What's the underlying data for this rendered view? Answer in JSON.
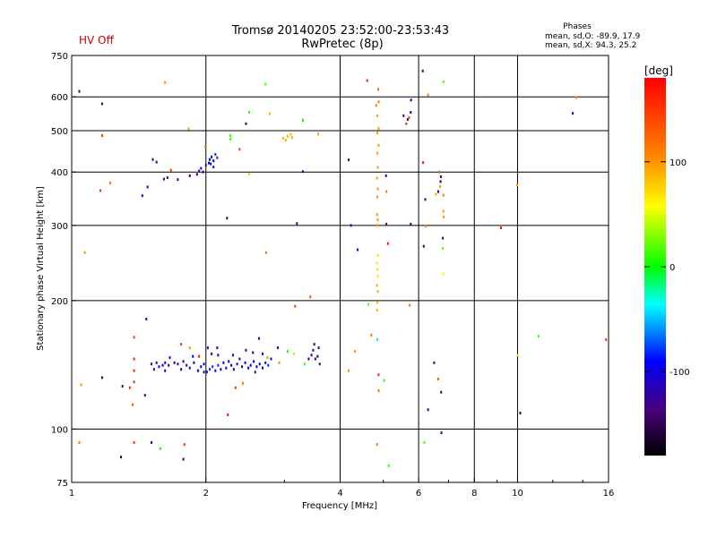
{
  "header": {
    "title_line1": "Tromsø 20140205 23:52:00-23:53:43",
    "title_line2": "RwPretec (8p)",
    "hv_status": "HV Off",
    "hv_color": "#cc0000"
  },
  "stats": {
    "heading": "Phases",
    "line1": "mean, sd,O: -89.9, 17.9",
    "line2": "mean, sd,X:  94.3, 25.2"
  },
  "colorbar": {
    "unit": "[deg]",
    "ticks": [
      {
        "label": "100",
        "value": 100
      },
      {
        "label": "0",
        "value": 0
      },
      {
        "label": "-100",
        "value": -100
      }
    ],
    "range": [
      -180,
      180
    ]
  },
  "chart_data": {
    "type": "scatter",
    "xlabel": "Frequency [MHz]",
    "ylabel": "Stationary phase Virtual Height [km]",
    "xscale": "log",
    "yscale": "log",
    "xlim": [
      1,
      16
    ],
    "ylim": [
      75,
      750
    ],
    "xticks": [
      {
        "label": "1",
        "value": 1
      },
      {
        "label": "2",
        "value": 2
      },
      {
        "label": "4",
        "value": 4
      },
      {
        "label": "6",
        "value": 6
      },
      {
        "label": "8",
        "value": 8
      },
      {
        "label": "10",
        "value": 10
      },
      {
        "label": "16",
        "value": 16
      }
    ],
    "yticks": [
      {
        "label": "75",
        "value": 75
      },
      {
        "label": "100",
        "value": 100
      },
      {
        "label": "200",
        "value": 200
      },
      {
        "label": "300",
        "value": 300
      },
      {
        "label": "400",
        "value": 400
      },
      {
        "label": "500",
        "value": 500
      },
      {
        "label": "600",
        "value": 600
      },
      {
        "label": "750",
        "value": 750
      }
    ],
    "vgrid": [
      2,
      4,
      6,
      8,
      10
    ],
    "hgrid": [
      100,
      200,
      300,
      400,
      500,
      600
    ],
    "points": [
      {
        "x": 1.04,
        "y": 618,
        "p": -140
      },
      {
        "x": 1.17,
        "y": 578,
        "p": -145
      },
      {
        "x": 1.17,
        "y": 487,
        "p": 150
      },
      {
        "x": 1.16,
        "y": 362,
        "p": 150
      },
      {
        "x": 1.22,
        "y": 377,
        "p": 120
      },
      {
        "x": 1.07,
        "y": 259,
        "p": 100
      },
      {
        "x": 1.62,
        "y": 648,
        "p": 100
      },
      {
        "x": 2.72,
        "y": 642,
        "p": 20
      },
      {
        "x": 1.83,
        "y": 505,
        "p": 95
      },
      {
        "x": 1.99,
        "y": 458,
        "p": 95
      },
      {
        "x": 2.27,
        "y": 487,
        "p": 10
      },
      {
        "x": 2.27,
        "y": 478,
        "p": 10
      },
      {
        "x": 2.46,
        "y": 519,
        "p": -120
      },
      {
        "x": 2.5,
        "y": 552,
        "p": 10
      },
      {
        "x": 2.78,
        "y": 548,
        "p": 90
      },
      {
        "x": 2.38,
        "y": 452,
        "p": 150
      },
      {
        "x": 3.3,
        "y": 529,
        "p": 0
      },
      {
        "x": 3.57,
        "y": 491,
        "p": 100
      },
      {
        "x": 2.98,
        "y": 480,
        "p": 90
      },
      {
        "x": 3.05,
        "y": 485,
        "p": 90
      },
      {
        "x": 3.1,
        "y": 490,
        "p": 90
      },
      {
        "x": 3.02,
        "y": 475,
        "p": 90
      },
      {
        "x": 3.12,
        "y": 482,
        "p": 90
      },
      {
        "x": 1.52,
        "y": 428,
        "p": -140
      },
      {
        "x": 1.55,
        "y": 422,
        "p": -140
      },
      {
        "x": 1.67,
        "y": 404,
        "p": 150
      },
      {
        "x": 1.61,
        "y": 385,
        "p": -120
      },
      {
        "x": 1.64,
        "y": 388,
        "p": -120
      },
      {
        "x": 1.48,
        "y": 369,
        "p": -100
      },
      {
        "x": 1.44,
        "y": 352,
        "p": -100
      },
      {
        "x": 1.73,
        "y": 384,
        "p": -110
      },
      {
        "x": 1.84,
        "y": 392,
        "p": -140
      },
      {
        "x": 1.91,
        "y": 395,
        "p": -140
      },
      {
        "x": 1.93,
        "y": 402,
        "p": -130
      },
      {
        "x": 1.95,
        "y": 408,
        "p": -120
      },
      {
        "x": 1.97,
        "y": 400,
        "p": -120
      },
      {
        "x": 2.0,
        "y": 415,
        "p": -110
      },
      {
        "x": 2.03,
        "y": 420,
        "p": -100
      },
      {
        "x": 2.04,
        "y": 428,
        "p": -90
      },
      {
        "x": 2.06,
        "y": 434,
        "p": -90
      },
      {
        "x": 2.08,
        "y": 425,
        "p": -90
      },
      {
        "x": 2.1,
        "y": 440,
        "p": -80
      },
      {
        "x": 2.12,
        "y": 432,
        "p": -80
      },
      {
        "x": 2.08,
        "y": 411,
        "p": -100
      },
      {
        "x": 2.05,
        "y": 418,
        "p": -100
      },
      {
        "x": 2.5,
        "y": 396,
        "p": 80
      },
      {
        "x": 2.23,
        "y": 312,
        "p": -145
      },
      {
        "x": 2.73,
        "y": 259,
        "p": 110
      },
      {
        "x": 3.2,
        "y": 303,
        "p": -120
      },
      {
        "x": 3.3,
        "y": 401,
        "p": -120
      },
      {
        "x": 3.43,
        "y": 204,
        "p": 140
      },
      {
        "x": 3.17,
        "y": 194,
        "p": 140
      },
      {
        "x": 4.18,
        "y": 427,
        "p": -140
      },
      {
        "x": 4.23,
        "y": 300,
        "p": -120
      },
      {
        "x": 4.38,
        "y": 263,
        "p": -110
      },
      {
        "x": 4.6,
        "y": 655,
        "p": 160
      },
      {
        "x": 4.87,
        "y": 625,
        "p": 120
      },
      {
        "x": 4.82,
        "y": 573,
        "p": 110
      },
      {
        "x": 4.88,
        "y": 584,
        "p": 110
      },
      {
        "x": 4.85,
        "y": 542,
        "p": 100
      },
      {
        "x": 4.88,
        "y": 506,
        "p": 100
      },
      {
        "x": 4.85,
        "y": 494,
        "p": 100
      },
      {
        "x": 4.88,
        "y": 462,
        "p": 100
      },
      {
        "x": 4.85,
        "y": 443,
        "p": 100
      },
      {
        "x": 4.86,
        "y": 410,
        "p": 100
      },
      {
        "x": 4.84,
        "y": 387,
        "p": 100
      },
      {
        "x": 4.86,
        "y": 365,
        "p": 100
      },
      {
        "x": 4.85,
        "y": 350,
        "p": 100
      },
      {
        "x": 4.84,
        "y": 318,
        "p": 100
      },
      {
        "x": 4.86,
        "y": 309,
        "p": 100
      },
      {
        "x": 4.85,
        "y": 300,
        "p": 100
      },
      {
        "x": 4.86,
        "y": 255,
        "p": 70
      },
      {
        "x": 4.84,
        "y": 245,
        "p": 70
      },
      {
        "x": 4.85,
        "y": 237,
        "p": 70
      },
      {
        "x": 4.86,
        "y": 228,
        "p": 70
      },
      {
        "x": 4.84,
        "y": 217,
        "p": 90
      },
      {
        "x": 4.86,
        "y": 210,
        "p": 90
      },
      {
        "x": 4.85,
        "y": 198,
        "p": 90
      },
      {
        "x": 4.84,
        "y": 190,
        "p": 90
      },
      {
        "x": 5.07,
        "y": 392,
        "p": -120
      },
      {
        "x": 5.08,
        "y": 302,
        "p": -130
      },
      {
        "x": 5.12,
        "y": 272,
        "p": 170
      },
      {
        "x": 5.08,
        "y": 360,
        "p": 110
      },
      {
        "x": 5.55,
        "y": 542,
        "p": -140
      },
      {
        "x": 5.67,
        "y": 531,
        "p": -140
      },
      {
        "x": 5.63,
        "y": 519,
        "p": 150
      },
      {
        "x": 5.71,
        "y": 536,
        "p": 150
      },
      {
        "x": 5.77,
        "y": 590,
        "p": -100
      },
      {
        "x": 5.76,
        "y": 552,
        "p": -120
      },
      {
        "x": 5.76,
        "y": 302,
        "p": -120
      },
      {
        "x": 5.73,
        "y": 195,
        "p": 110
      },
      {
        "x": 6.13,
        "y": 690,
        "p": -140
      },
      {
        "x": 6.3,
        "y": 606,
        "p": 110
      },
      {
        "x": 6.14,
        "y": 421,
        "p": 170
      },
      {
        "x": 6.21,
        "y": 345,
        "p": -130
      },
      {
        "x": 6.22,
        "y": 299,
        "p": 110
      },
      {
        "x": 6.16,
        "y": 268,
        "p": -140
      },
      {
        "x": 6.56,
        "y": 355,
        "p": 100
      },
      {
        "x": 6.7,
        "y": 370,
        "p": 100
      },
      {
        "x": 6.72,
        "y": 380,
        "p": -150
      },
      {
        "x": 6.82,
        "y": 353,
        "p": 110
      },
      {
        "x": 6.82,
        "y": 324,
        "p": 100
      },
      {
        "x": 6.83,
        "y": 314,
        "p": 100
      },
      {
        "x": 6.8,
        "y": 280,
        "p": -140
      },
      {
        "x": 6.8,
        "y": 265,
        "p": 20
      },
      {
        "x": 6.81,
        "y": 231,
        "p": 60
      },
      {
        "x": 6.82,
        "y": 651,
        "p": 20
      },
      {
        "x": 6.73,
        "y": 390,
        "p": -140
      },
      {
        "x": 6.68,
        "y": 400,
        "p": 130
      },
      {
        "x": 6.64,
        "y": 360,
        "p": -130
      },
      {
        "x": 4.63,
        "y": 196,
        "p": 20
      },
      {
        "x": 4.7,
        "y": 166,
        "p": 110
      },
      {
        "x": 4.85,
        "y": 162,
        "p": -40
      },
      {
        "x": 4.32,
        "y": 152,
        "p": 100
      },
      {
        "x": 4.88,
        "y": 134,
        "p": 160
      },
      {
        "x": 4.88,
        "y": 123,
        "p": 110
      },
      {
        "x": 4.18,
        "y": 137,
        "p": 100
      },
      {
        "x": 6.3,
        "y": 111,
        "p": -120
      },
      {
        "x": 6.5,
        "y": 143,
        "p": -120
      },
      {
        "x": 6.64,
        "y": 131,
        "p": 130
      },
      {
        "x": 6.74,
        "y": 122,
        "p": -130
      },
      {
        "x": 6.75,
        "y": 98,
        "p": -130
      },
      {
        "x": 6.18,
        "y": 93,
        "p": 20
      },
      {
        "x": 5.14,
        "y": 82,
        "p": 10
      },
      {
        "x": 4.84,
        "y": 92,
        "p": 110
      },
      {
        "x": 5.02,
        "y": 130,
        "p": 10
      },
      {
        "x": 9.18,
        "y": 296,
        "p": 170
      },
      {
        "x": 9.98,
        "y": 373,
        "p": 100
      },
      {
        "x": 10.0,
        "y": 149,
        "p": 80
      },
      {
        "x": 10.14,
        "y": 109,
        "p": -150
      },
      {
        "x": 11.14,
        "y": 165,
        "p": 10
      },
      {
        "x": 13.3,
        "y": 549,
        "p": -120
      },
      {
        "x": 13.56,
        "y": 598,
        "p": 110
      },
      {
        "x": 15.8,
        "y": 162,
        "p": 150
      },
      {
        "x": 1.47,
        "y": 181,
        "p": -100
      },
      {
        "x": 1.38,
        "y": 164,
        "p": 150
      },
      {
        "x": 1.38,
        "y": 146,
        "p": 160
      },
      {
        "x": 1.38,
        "y": 137,
        "p": 160
      },
      {
        "x": 1.38,
        "y": 129,
        "p": 150
      },
      {
        "x": 1.37,
        "y": 114,
        "p": 130
      },
      {
        "x": 1.38,
        "y": 93,
        "p": 150
      },
      {
        "x": 1.35,
        "y": 125,
        "p": 160
      },
      {
        "x": 1.51,
        "y": 93,
        "p": -110
      },
      {
        "x": 1.58,
        "y": 90,
        "p": 0
      },
      {
        "x": 1.78,
        "y": 85,
        "p": -140
      },
      {
        "x": 1.79,
        "y": 92,
        "p": 150
      },
      {
        "x": 1.29,
        "y": 86,
        "p": -140
      },
      {
        "x": 1.04,
        "y": 93,
        "p": 110
      },
      {
        "x": 1.05,
        "y": 127,
        "p": 100
      },
      {
        "x": 1.17,
        "y": 132,
        "p": -145
      },
      {
        "x": 1.3,
        "y": 126,
        "p": -130
      },
      {
        "x": 1.46,
        "y": 120,
        "p": -130
      },
      {
        "x": 1.76,
        "y": 158,
        "p": 150
      },
      {
        "x": 1.84,
        "y": 155,
        "p": 100
      },
      {
        "x": 1.93,
        "y": 148,
        "p": 160
      },
      {
        "x": 2.02,
        "y": 155,
        "p": -100
      },
      {
        "x": 2.12,
        "y": 155,
        "p": -90
      },
      {
        "x": 2.24,
        "y": 108,
        "p": 170
      },
      {
        "x": 2.33,
        "y": 125,
        "p": 150
      },
      {
        "x": 2.42,
        "y": 128,
        "p": 120
      },
      {
        "x": 2.63,
        "y": 163,
        "p": -120
      },
      {
        "x": 2.68,
        "y": 150,
        "p": -100
      },
      {
        "x": 2.75,
        "y": 147,
        "p": 100
      },
      {
        "x": 2.92,
        "y": 143,
        "p": 100
      },
      {
        "x": 2.9,
        "y": 155,
        "p": -120
      },
      {
        "x": 3.05,
        "y": 152,
        "p": 0
      },
      {
        "x": 3.15,
        "y": 150,
        "p": 40
      },
      {
        "x": 3.48,
        "y": 153,
        "p": -120
      },
      {
        "x": 3.52,
        "y": 146,
        "p": -130
      },
      {
        "x": 3.56,
        "y": 148,
        "p": -140
      },
      {
        "x": 3.58,
        "y": 155,
        "p": -120
      },
      {
        "x": 3.45,
        "y": 149,
        "p": -110
      },
      {
        "x": 3.5,
        "y": 158,
        "p": -140
      },
      {
        "x": 3.6,
        "y": 142,
        "p": -130
      },
      {
        "x": 3.4,
        "y": 146,
        "p": -120
      },
      {
        "x": 3.33,
        "y": 142,
        "p": 10
      },
      {
        "x": 1.51,
        "y": 142,
        "p": -110
      },
      {
        "x": 1.53,
        "y": 138,
        "p": -120
      },
      {
        "x": 1.55,
        "y": 143,
        "p": -120
      },
      {
        "x": 1.57,
        "y": 140,
        "p": -110
      },
      {
        "x": 1.6,
        "y": 141,
        "p": -100
      },
      {
        "x": 1.62,
        "y": 137,
        "p": -110
      },
      {
        "x": 1.65,
        "y": 141,
        "p": -110
      },
      {
        "x": 1.66,
        "y": 147,
        "p": -120
      },
      {
        "x": 1.7,
        "y": 143,
        "p": -100
      },
      {
        "x": 1.73,
        "y": 142,
        "p": -110
      },
      {
        "x": 1.76,
        "y": 138,
        "p": -100
      },
      {
        "x": 1.78,
        "y": 144,
        "p": -100
      },
      {
        "x": 1.81,
        "y": 141,
        "p": -90
      },
      {
        "x": 1.84,
        "y": 139,
        "p": -100
      },
      {
        "x": 1.88,
        "y": 143,
        "p": -90
      },
      {
        "x": 1.92,
        "y": 137,
        "p": -100
      },
      {
        "x": 1.95,
        "y": 140,
        "p": -90
      },
      {
        "x": 1.98,
        "y": 142,
        "p": -100
      },
      {
        "x": 2.01,
        "y": 136,
        "p": -90
      },
      {
        "x": 2.04,
        "y": 138,
        "p": -80
      },
      {
        "x": 2.07,
        "y": 140,
        "p": -80
      },
      {
        "x": 2.1,
        "y": 137,
        "p": -90
      },
      {
        "x": 2.13,
        "y": 141,
        "p": -80
      },
      {
        "x": 2.16,
        "y": 138,
        "p": -90
      },
      {
        "x": 2.19,
        "y": 143,
        "p": -100
      },
      {
        "x": 2.22,
        "y": 139,
        "p": -90
      },
      {
        "x": 2.25,
        "y": 144,
        "p": -100
      },
      {
        "x": 2.28,
        "y": 141,
        "p": -90
      },
      {
        "x": 2.31,
        "y": 138,
        "p": -100
      },
      {
        "x": 2.35,
        "y": 142,
        "p": -90
      },
      {
        "x": 2.38,
        "y": 146,
        "p": -110
      },
      {
        "x": 2.41,
        "y": 140,
        "p": -100
      },
      {
        "x": 2.45,
        "y": 143,
        "p": -100
      },
      {
        "x": 2.49,
        "y": 139,
        "p": -90
      },
      {
        "x": 2.52,
        "y": 141,
        "p": -90
      },
      {
        "x": 2.56,
        "y": 144,
        "p": -100
      },
      {
        "x": 2.6,
        "y": 140,
        "p": -90
      },
      {
        "x": 2.64,
        "y": 142,
        "p": -100
      },
      {
        "x": 2.68,
        "y": 139,
        "p": -90
      },
      {
        "x": 2.72,
        "y": 143,
        "p": -100
      },
      {
        "x": 2.76,
        "y": 141,
        "p": -80
      },
      {
        "x": 2.8,
        "y": 146,
        "p": -90
      },
      {
        "x": 2.06,
        "y": 150,
        "p": -100
      },
      {
        "x": 2.13,
        "y": 149,
        "p": -110
      },
      {
        "x": 2.3,
        "y": 149,
        "p": -100
      },
      {
        "x": 2.55,
        "y": 151,
        "p": -100
      },
      {
        "x": 2.46,
        "y": 153,
        "p": -110
      },
      {
        "x": 2.58,
        "y": 136,
        "p": -120
      },
      {
        "x": 1.98,
        "y": 136,
        "p": -120
      },
      {
        "x": 1.87,
        "y": 148,
        "p": -90
      },
      {
        "x": 1.62,
        "y": 143,
        "p": -100
      }
    ]
  }
}
